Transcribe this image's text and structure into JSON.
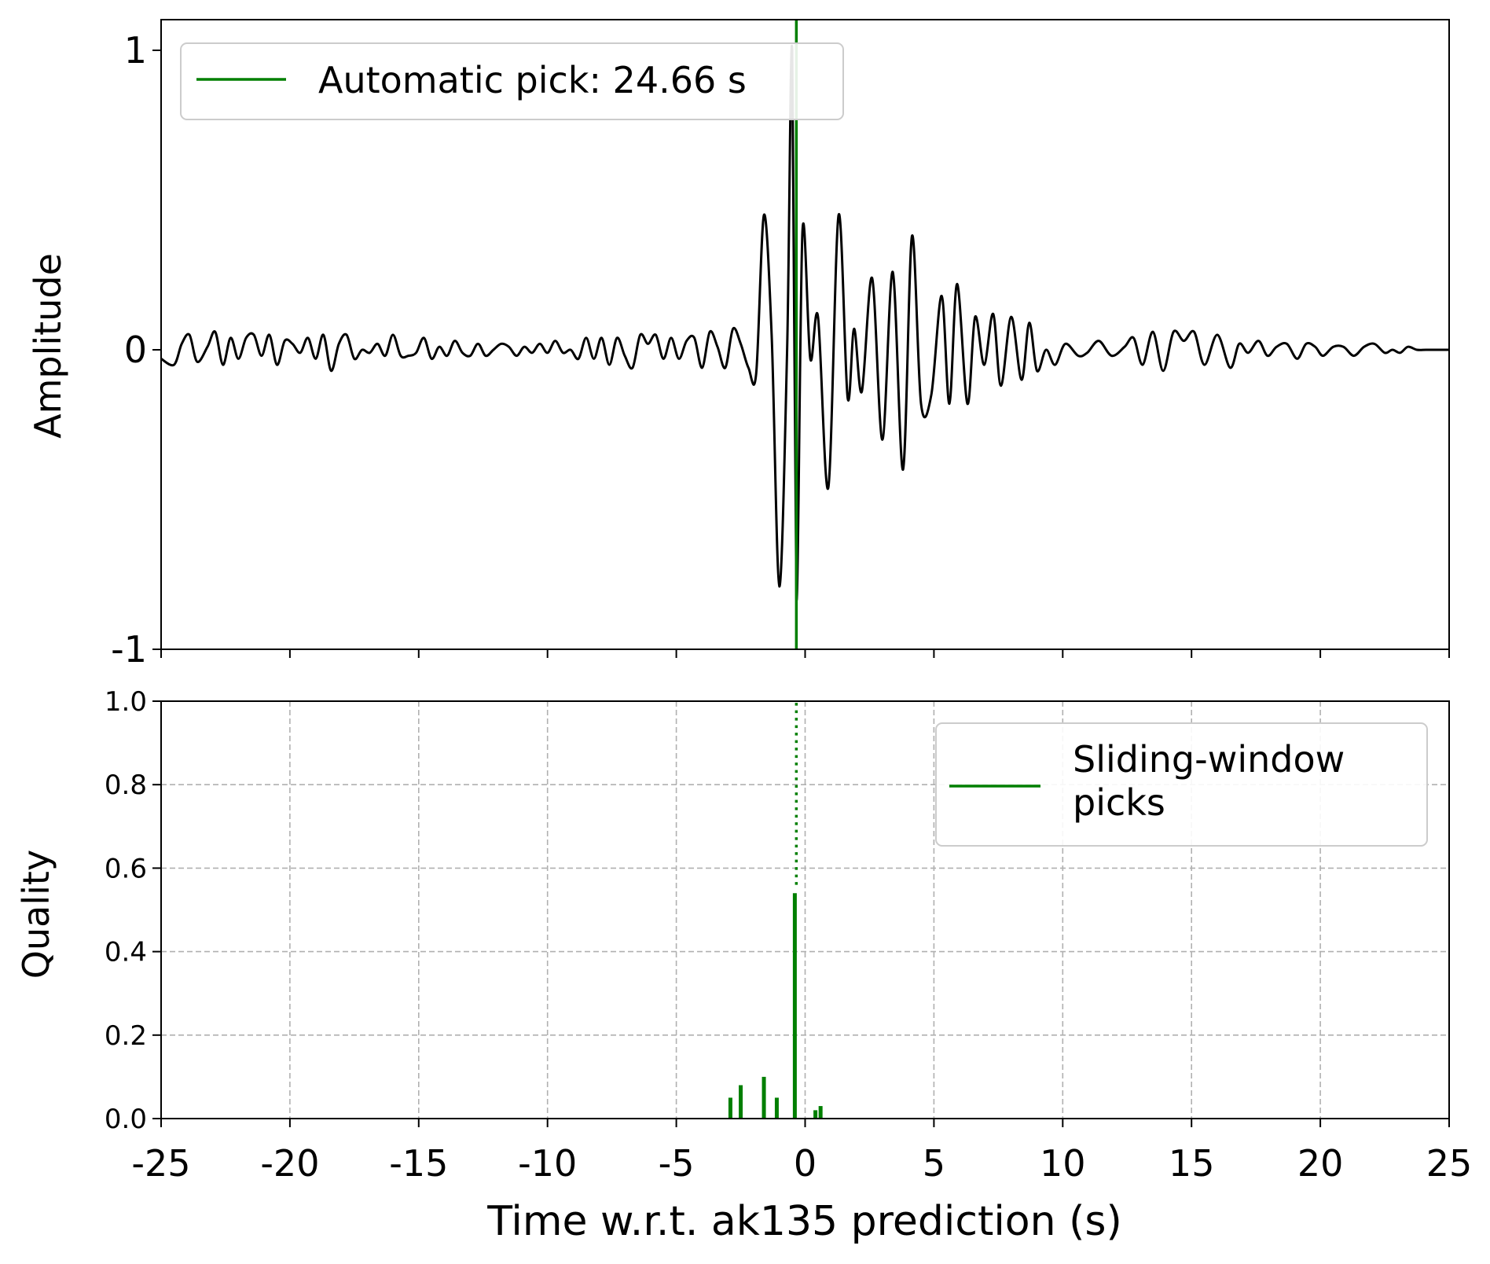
{
  "colors": {
    "waveform": "#000000",
    "pick": "#007f00",
    "grid": "#b0b0b0",
    "axes": "#000000"
  },
  "chart_data": [
    {
      "type": "line",
      "ylabel": "Amplitude",
      "xlim": [
        -25,
        25
      ],
      "ylim": [
        -1,
        1
      ],
      "yticks": [
        -1,
        0,
        1
      ],
      "ytick_labels": [
        "-1",
        "0",
        "1"
      ],
      "xticks": [
        -25,
        -20,
        -15,
        -10,
        -5,
        0,
        5,
        10,
        15,
        20,
        25
      ],
      "grid": false,
      "legend": {
        "placement": "upper-left",
        "entries": [
          "Automatic pick: 24.66 s"
        ]
      },
      "pick_time": -0.34,
      "series": [
        {
          "color": "#000000",
          "x": [
            -25,
            -24.5,
            -24.2,
            -23.9,
            -23.6,
            -23.2,
            -22.9,
            -22.6,
            -22.3,
            -22,
            -21.7,
            -21.4,
            -21.1,
            -20.8,
            -20.5,
            -20.2,
            -19.9,
            -19.6,
            -19.3,
            -19,
            -18.7,
            -18.4,
            -18.1,
            -17.8,
            -17.5,
            -17.2,
            -16.9,
            -16.6,
            -16.3,
            -16,
            -15.7,
            -15.4,
            -15.1,
            -14.8,
            -14.5,
            -14.2,
            -13.9,
            -13.6,
            -13.3,
            -13,
            -12.7,
            -12.4,
            -12.1,
            -11.8,
            -11.5,
            -11.2,
            -10.9,
            -10.6,
            -10.3,
            -10,
            -9.7,
            -9.4,
            -9.1,
            -8.8,
            -8.5,
            -8.2,
            -7.9,
            -7.6,
            -7.3,
            -7,
            -6.7,
            -6.4,
            -6.1,
            -5.8,
            -5.5,
            -5.2,
            -4.9,
            -4.6,
            -4.3,
            -4,
            -3.7,
            -3.4,
            -3.1,
            -2.8,
            -2.5,
            -2.2,
            -1.9,
            -1.6,
            -1.3,
            -1,
            -0.7,
            -0.5,
            -0.34,
            -0.1,
            0.2,
            0.5,
            0.9,
            1.3,
            1.65,
            1.9,
            2.2,
            2.6,
            3,
            3.4,
            3.8,
            4.15,
            4.5,
            4.9,
            5.3,
            5.6,
            5.9,
            6.3,
            6.6,
            6.95,
            7.3,
            7.6,
            8,
            8.4,
            8.7,
            9,
            9.35,
            9.7,
            10.1,
            10.6,
            10.95,
            11.4,
            11.9,
            12.4,
            12.75,
            13.1,
            13.5,
            13.9,
            14.3,
            14.7,
            15.1,
            15.5,
            16,
            16.5,
            16.85,
            17.2,
            17.6,
            17.95,
            18.3,
            18.7,
            19.1,
            19.45,
            19.8,
            20.1,
            20.5,
            20.9,
            21.3,
            21.7,
            22.1,
            22.5,
            22.8,
            23.1,
            23.4,
            23.75,
            24.1,
            24.5,
            24.9,
            25
          ],
          "y": [
            -0.03,
            -0.05,
            0.02,
            0.05,
            -0.04,
            0.01,
            0.06,
            -0.05,
            0.04,
            -0.03,
            0.04,
            0.05,
            -0.02,
            0.05,
            -0.05,
            0.03,
            0.02,
            -0.01,
            0.04,
            -0.03,
            0.05,
            -0.07,
            0.02,
            0.05,
            -0.03,
            0,
            -0.01,
            0.02,
            -0.02,
            0.05,
            -0.02,
            -0.02,
            -0.01,
            0.04,
            -0.03,
            0.01,
            -0.02,
            0.03,
            -0.01,
            -0.02,
            0.02,
            -0.02,
            0,
            0.02,
            0.01,
            -0.02,
            0.01,
            -0.01,
            0.02,
            -0.01,
            0.03,
            -0.01,
            0,
            -0.03,
            0.04,
            -0.03,
            0.04,
            -0.05,
            0.04,
            -0.02,
            -0.06,
            0.05,
            0.02,
            0.05,
            -0.03,
            0.04,
            -0.03,
            0.03,
            0.04,
            -0.06,
            0.06,
            0.01,
            -0.06,
            0.07,
            0.02,
            -0.06,
            -0.08,
            0.45,
            0.05,
            -0.79,
            0,
            1,
            -0.83,
            0.4,
            -0.03,
            0.11,
            -0.46,
            0.45,
            -0.16,
            0.07,
            -0.14,
            0.24,
            -0.3,
            0.26,
            -0.4,
            0.38,
            -0.18,
            -0.15,
            0.18,
            -0.18,
            0.22,
            -0.18,
            0.11,
            -0.05,
            0.12,
            -0.12,
            0.11,
            -0.1,
            0.09,
            -0.07,
            0,
            -0.05,
            0.02,
            -0.02,
            -0.01,
            0.03,
            -0.02,
            0.01,
            0.04,
            -0.05,
            0.06,
            -0.07,
            0.06,
            0.03,
            0.06,
            -0.05,
            0.05,
            -0.06,
            0.02,
            -0.01,
            0.03,
            -0.02,
            0.01,
            0.02,
            -0.03,
            0.02,
            0.01,
            -0.02,
            0.01,
            0.01,
            -0.02,
            0.01,
            0.02,
            -0.01,
            0,
            -0.01,
            0.01,
            0,
            0,
            0,
            0,
            0
          ]
        }
      ]
    },
    {
      "type": "bar",
      "ylabel": "Quality",
      "xlabel": "Time w.r.t. ak135 prediction (s)",
      "xlim": [
        -25,
        25
      ],
      "ylim": [
        0,
        1
      ],
      "xticks": [
        -25,
        -20,
        -15,
        -10,
        -5,
        0,
        5,
        10,
        15,
        20,
        25
      ],
      "xtick_labels": [
        "-25",
        "-20",
        "-15",
        "-10",
        "-5",
        "0",
        "5",
        "10",
        "15",
        "20",
        "25"
      ],
      "yticks": [
        0,
        0.2,
        0.4,
        0.6,
        0.8,
        1.0
      ],
      "ytick_labels": [
        "0.0",
        "0.2",
        "0.4",
        "0.6",
        "0.8",
        "1.0"
      ],
      "grid": true,
      "legend": {
        "placement": "upper-right",
        "entries": [
          "Sliding-window\npicks"
        ]
      },
      "series": [
        {
          "color": "#007f00",
          "x": [
            -2.9,
            -2.5,
            -1.6,
            -1.1,
            -0.4,
            0.4,
            0.6
          ],
          "values": [
            0.05,
            0.08,
            0.1,
            0.05,
            0.54,
            0.02,
            0.03
          ]
        }
      ],
      "pick_line": {
        "x": -0.34,
        "from": 0.56,
        "to": 1.0,
        "style": "dotted"
      }
    }
  ]
}
